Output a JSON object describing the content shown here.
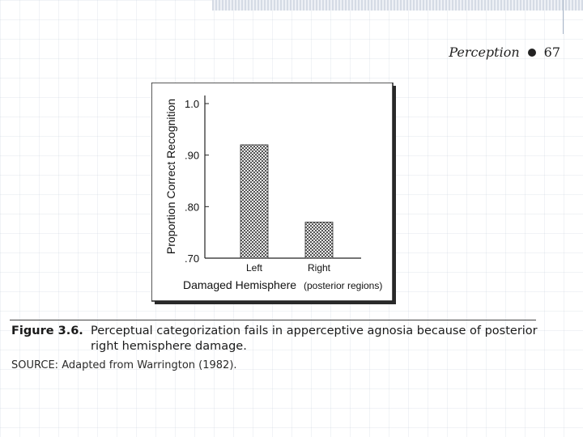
{
  "header": {
    "chapter": "Perception",
    "page_number": "67"
  },
  "chart_data": {
    "type": "bar",
    "categories": [
      "Left",
      "Right"
    ],
    "values": [
      0.92,
      0.77
    ],
    "ylabel": "Proportion Correct Recognition",
    "xlabel": "Damaged Hemisphere",
    "xlabel_note": "(posterior regions)",
    "ylim": [
      0.7,
      1.0
    ],
    "yticks": [
      0.7,
      0.8,
      0.9,
      1.0
    ],
    "ytick_labels": [
      ".70",
      ".80",
      ".90",
      "1.0"
    ],
    "grid": false,
    "bar_pattern": "checkered"
  },
  "figure": {
    "number": "Figure 3.6.",
    "caption": "Perceptual categorization fails in apperceptive agnosia because of posterior right hemisphere damage.",
    "source": "SOURCE: Adapted from Warrington (1982)."
  }
}
